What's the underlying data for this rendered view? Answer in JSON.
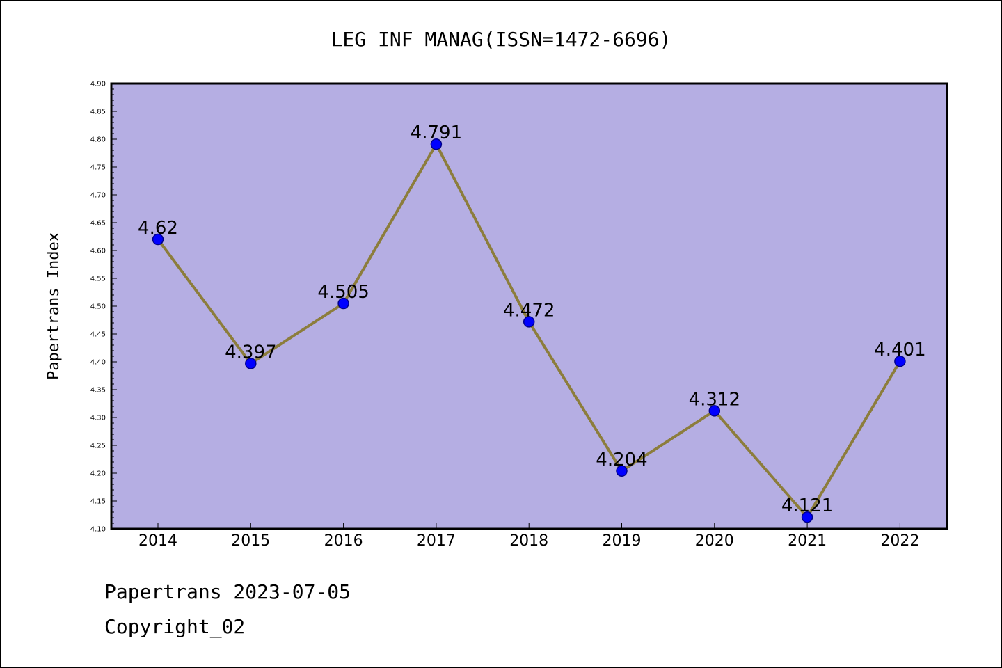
{
  "chart_data": {
    "type": "line",
    "title": "LEG INF MANAG(ISSN=1472-6696)",
    "ylabel": "Papertrans Index",
    "xlabel": "",
    "categories": [
      "2014",
      "2015",
      "2016",
      "2017",
      "2018",
      "2019",
      "2020",
      "2021",
      "2022"
    ],
    "values": [
      4.62,
      4.397,
      4.505,
      4.791,
      4.472,
      4.204,
      4.312,
      4.121,
      4.401
    ],
    "value_labels": [
      "4.62",
      "4.397",
      "4.505",
      "4.791",
      "4.472",
      "4.204",
      "4.312",
      "4.121",
      "4.401"
    ],
    "ylim": [
      4.1,
      4.9
    ],
    "yticks": [
      "4.10",
      "4.15",
      "4.20",
      "4.25",
      "4.30",
      "4.35",
      "4.40",
      "4.45",
      "4.50",
      "4.55",
      "4.60",
      "4.65",
      "4.70",
      "4.75",
      "4.80",
      "4.85",
      "4.90"
    ],
    "grid": false,
    "legend": "none",
    "colors": {
      "plot_background": "#b5aee3",
      "line": "#8c7d3c",
      "marker_fill": "#0000ff",
      "marker_edge": "#00008b"
    }
  },
  "footer": {
    "line1": "Papertrans 2023-07-05",
    "line2": "Copyright_02"
  }
}
